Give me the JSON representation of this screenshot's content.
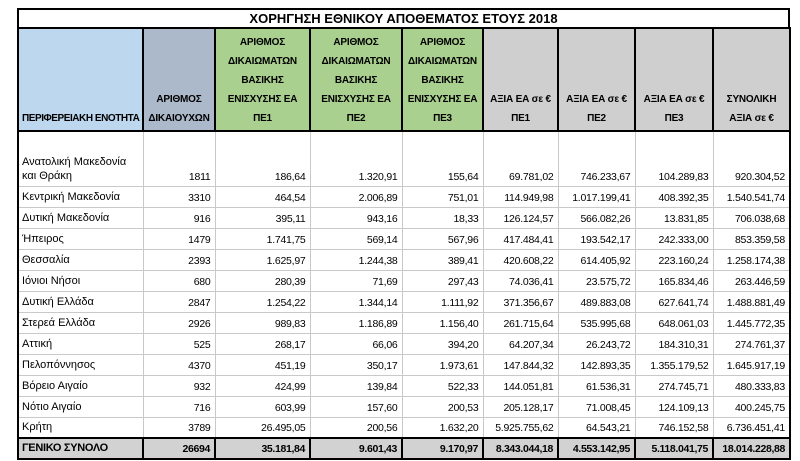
{
  "title": "ΧΟΡΗΓΗΣΗ ΕΘΝΙΚΟΥ ΑΠΟΘΕΜΑΤΟΣ ΕΤΟΥΣ 2018",
  "colors": {
    "border": "#000000",
    "grid_line": "#C9C9C9",
    "total_row_bg": "#D2D2D2",
    "region_header_bg": "#BDD7EE",
    "beneficiaries_header_bg": "#ACB9CA",
    "rights_header_bg": "#A9D08E",
    "value_header_bg": "#CFCFCF"
  },
  "table": {
    "columns": [
      {
        "key": "perifereiaki-enotita",
        "label": "ΠΕΡΙΦΕΡΕΙΑΚΗ ΕΝΟΤΗΤΑ",
        "bg": "#BDD7EE"
      },
      {
        "key": "arithmos-dikaiouchon",
        "label": "ΑΡΙΘΜΟΣ\nΔΙΚΑΙΟΥΧΩΝ",
        "bg": "#ACB9CA"
      },
      {
        "key": "dikaiomata-ea-pe1",
        "label": "ΑΡΙΘΜΟΣ\nΔΙΚΑΙΩΜΑΤΩΝ\nΒΑΣΙΚΗΣ\nΕΝΙΣΧΥΣΗΣ ΕΑ\nΠΕ1",
        "bg": "#A9D08E"
      },
      {
        "key": "dikaiomata-ea-pe2",
        "label": "ΑΡΙΘΜΟΣ\nΔΙΚΑΙΩΜΑΤΩΝ\nΒΑΣΙΚΗΣ\nΕΝΙΣΧΥΣΗΣ ΕΑ\nΠΕ2",
        "bg": "#A9D08E"
      },
      {
        "key": "dikaiomata-ea-pe3",
        "label": "ΑΡΙΘΜΟΣ\nΔΙΚΑΙΩΜΑΤΩΝ\nΒΑΣΙΚΗΣ\nΕΝΙΣΧΥΣΗΣ ΕΑ\nΠΕ3",
        "bg": "#A9D08E"
      },
      {
        "key": "axia-ea-pe1",
        "label": "ΑΞΙΑ ΕΑ σε €\nΠΕ1",
        "bg": "#CFCFCF"
      },
      {
        "key": "axia-ea-pe2",
        "label": "ΑΞΙΑ ΕΑ σε €\nΠΕ2",
        "bg": "#CFCFCF"
      },
      {
        "key": "axia-ea-pe3",
        "label": "ΑΞΙΑ ΕΑ σε €\nΠΕ3",
        "bg": "#CFCFCF"
      },
      {
        "key": "synoliki-axia",
        "label": "ΣΥΝΟΛΙΚΗ\nΑΞΙΑ σε €",
        "bg": "#CFCFCF"
      }
    ],
    "rows": [
      [
        "Ανατολική Μακεδονία και Θράκη",
        "1811",
        "186,64",
        "1.320,91",
        "155,64",
        "69.781,02",
        "746.233,67",
        "104.289,83",
        "920.304,52"
      ],
      [
        "Κεντρική Μακεδονία",
        "3310",
        "464,54",
        "2.006,89",
        "751,01",
        "114.949,98",
        "1.017.199,41",
        "408.392,35",
        "1.540.541,74"
      ],
      [
        "Δυτική Μακεδονία",
        "916",
        "395,11",
        "943,16",
        "18,33",
        "126.124,57",
        "566.082,26",
        "13.831,85",
        "706.038,68"
      ],
      [
        "Ήπειρος",
        "1479",
        "1.741,75",
        "569,14",
        "567,96",
        "417.484,41",
        "193.542,17",
        "242.333,00",
        "853.359,58"
      ],
      [
        "Θεσσαλία",
        "2393",
        "1.625,97",
        "1.244,38",
        "389,41",
        "420.608,22",
        "614.405,92",
        "223.160,24",
        "1.258.174,38"
      ],
      [
        "Ιόνιοι Νήσοι",
        "680",
        "280,39",
        "71,69",
        "297,43",
        "74.036,41",
        "23.575,72",
        "165.834,46",
        "263.446,59"
      ],
      [
        "Δυτική Ελλάδα",
        "2847",
        "1.254,22",
        "1.344,14",
        "1.111,92",
        "371.356,67",
        "489.883,08",
        "627.641,74",
        "1.488.881,49"
      ],
      [
        "Στερεά Ελλάδα",
        "2926",
        "989,83",
        "1.186,89",
        "1.156,40",
        "261.715,64",
        "535.995,68",
        "648.061,03",
        "1.445.772,35"
      ],
      [
        "Αττική",
        "525",
        "268,17",
        "66,06",
        "394,20",
        "64.207,34",
        "26.243,72",
        "184.310,31",
        "274.761,37"
      ],
      [
        "Πελοπόννησος",
        "4370",
        "451,19",
        "350,17",
        "1.973,61",
        "147.844,32",
        "142.893,35",
        "1.355.179,52",
        "1.645.917,19"
      ],
      [
        "Βόρειο Αιγαίο",
        "932",
        "424,99",
        "139,84",
        "522,33",
        "144.051,81",
        "61.536,31",
        "274.745,71",
        "480.333,83"
      ],
      [
        "Νότιο Αιγαίο",
        "716",
        "603,99",
        "157,60",
        "200,53",
        "205.128,17",
        "71.008,45",
        "124.109,13",
        "400.245,75"
      ],
      [
        "Κρήτη",
        "3789",
        "26.495,05",
        "200,56",
        "1.632,20",
        "5.925.755,62",
        "64.543,21",
        "746.152,58",
        "6.736.451,41"
      ]
    ],
    "total_row": [
      "ΓΕΝΙΚΟ ΣΥΝΟΛΟ",
      "26694",
      "35.181,84",
      "9.601,43",
      "9.170,97",
      "8.343.044,18",
      "4.553.142,95",
      "5.118.041,75",
      "18.014.228,88"
    ]
  }
}
